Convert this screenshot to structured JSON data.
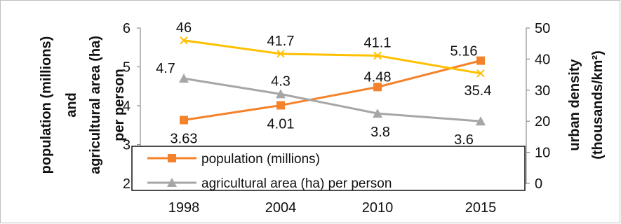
{
  "chart_data": {
    "type": "line",
    "categories": [
      "1998",
      "2004",
      "2010",
      "2015"
    ],
    "left_axis": {
      "label_lines": [
        "population (millions)",
        "and",
        "agricultural area (ha)",
        "per person"
      ],
      "ticks": [
        "2",
        "3",
        "4",
        "5",
        "6"
      ],
      "ylim": [
        2,
        6
      ]
    },
    "right_axis": {
      "label_lines": [
        "urban density",
        "(thousands/km²)"
      ],
      "ticks": [
        "0",
        "10",
        "20",
        "30",
        "40",
        "50"
      ],
      "ylim": [
        0,
        50
      ]
    },
    "series": [
      {
        "name": "population (millions)",
        "axis": "left",
        "color": "#f4822a",
        "marker": "square",
        "values": [
          3.63,
          4.01,
          4.48,
          5.16
        ],
        "labels": [
          "3.63",
          "4.01",
          "4.48",
          "5.16"
        ]
      },
      {
        "name": "agricultural area (ha) per person",
        "axis": "left",
        "color": "#a6a6a6",
        "marker": "triangle",
        "values": [
          4.7,
          4.3,
          3.8,
          3.6
        ],
        "labels": [
          "4.7",
          "4.3",
          "3.8",
          "3.6"
        ]
      },
      {
        "name": "",
        "axis": "right",
        "color": "#ffc000",
        "marker": "x",
        "values": [
          46,
          41.7,
          41.1,
          35.4
        ],
        "labels": [
          "46",
          "41.7",
          "41.1",
          "35.4"
        ]
      }
    ],
    "legend": {
      "placement": "bottom-left, inside plot"
    },
    "grid": false
  }
}
